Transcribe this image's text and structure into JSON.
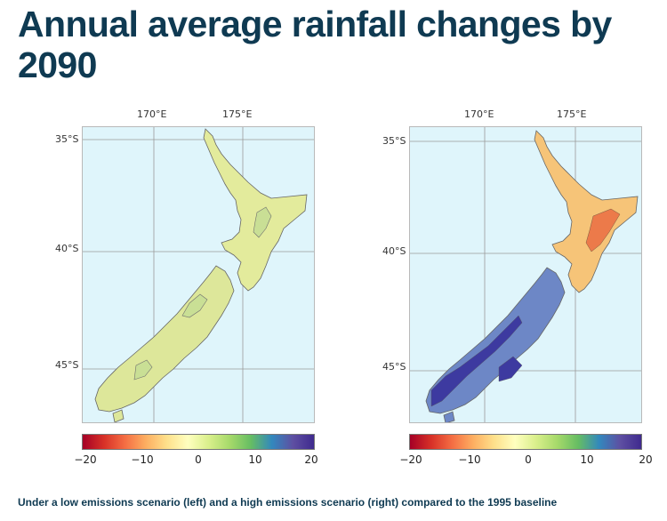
{
  "title": "Annual average rainfall changes by 2090",
  "caption": "Under a low emissions scenario (left) and a high emissions scenario (right) compared to the 1995 baseline",
  "axes": {
    "lon_labels": [
      "170°E",
      "175°E"
    ],
    "lat_labels": [
      "35°S",
      "40°S",
      "45°S"
    ]
  },
  "colorbar": {
    "ticks": [
      "−20",
      "−10",
      "0",
      "10",
      "20"
    ],
    "colors": [
      "#a50026",
      "#d73027",
      "#f46d43",
      "#fdae61",
      "#fee08b",
      "#ffffbf",
      "#d9ef8b",
      "#a6d96a",
      "#66bd63",
      "#3288bd",
      "#5e4fa2",
      "#3f2a8e"
    ]
  },
  "maps": [
    {
      "name": "low emissions scenario",
      "north_island_fill": "#e3eb9c",
      "south_island_fill": "#dde79a",
      "highlight_fill": "#c9df95"
    },
    {
      "name": "high emissions scenario",
      "north_island_fill": "#f6c478",
      "south_island_fill": "#6d87c6",
      "highlight_fill": "#3d3aa0"
    }
  ]
}
